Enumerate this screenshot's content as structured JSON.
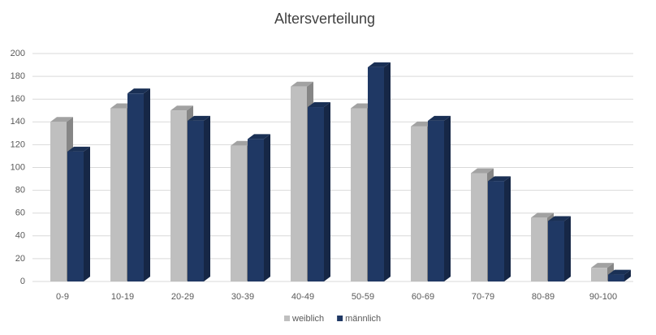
{
  "chart_data": {
    "type": "bar3d",
    "title": "Altersverteilung",
    "categories": [
      "0-9",
      "10-19",
      "20-29",
      "30-39",
      "40-49",
      "50-59",
      "60-69",
      "70-79",
      "80-89",
      "90-100"
    ],
    "series": [
      {
        "name": "weiblich",
        "color": "#bfbfbf",
        "values": [
          140,
          152,
          150,
          119,
          171,
          152,
          136,
          95,
          56,
          12
        ]
      },
      {
        "name": "männlich",
        "color": "#1f3864",
        "values": [
          114,
          165,
          141,
          125,
          153,
          188,
          141,
          88,
          53,
          6
        ]
      }
    ],
    "ylim": [
      0,
      200
    ],
    "yticks": [
      0,
      20,
      40,
      60,
      80,
      100,
      120,
      140,
      160,
      180,
      200
    ],
    "grid": true,
    "legend": "bottom"
  }
}
